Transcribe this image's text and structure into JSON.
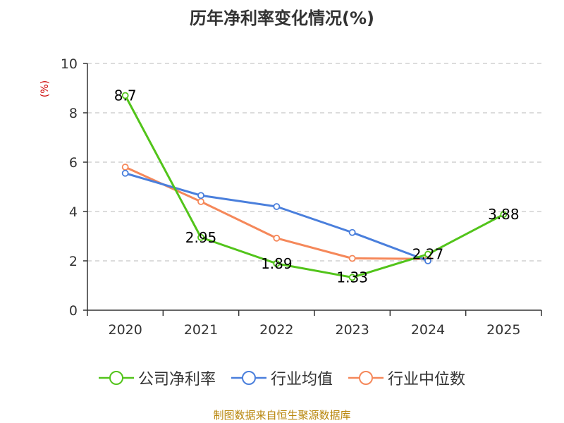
{
  "chart_data": {
    "type": "line",
    "title": "历年净利率变化情况(%)",
    "ylabel": "(%)",
    "xlabel": "",
    "categories": [
      "2020",
      "2021",
      "2022",
      "2023",
      "2024",
      "2025"
    ],
    "ylim": [
      0,
      10
    ],
    "yticks": [
      0,
      2,
      4,
      6,
      8,
      10
    ],
    "grid": true,
    "legend_position": "bottom",
    "series": [
      {
        "name": "公司净利率",
        "color": "#52c41a",
        "values": [
          8.7,
          2.95,
          1.89,
          1.33,
          2.27,
          3.88
        ],
        "labels": [
          "8.7",
          "2.95",
          "1.89",
          "1.33",
          "2.27",
          "3.88"
        ]
      },
      {
        "name": "行业均值",
        "color": "#4a7fdc",
        "values": [
          5.55,
          4.65,
          4.2,
          3.15,
          2.0,
          null
        ]
      },
      {
        "name": "行业中位数",
        "color": "#f5885a",
        "values": [
          5.8,
          4.4,
          2.92,
          2.1,
          2.08,
          null
        ]
      }
    ],
    "source": "制图数据来自恒生聚源数据库"
  }
}
